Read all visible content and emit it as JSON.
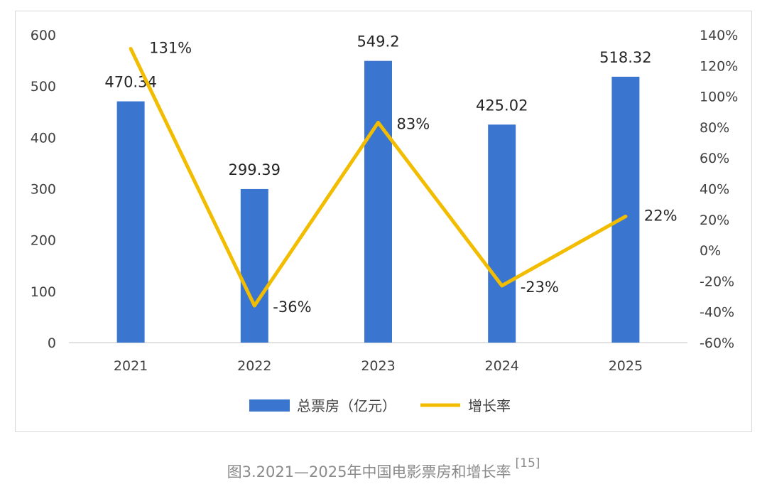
{
  "chart_data": {
    "type": "bar",
    "categories": [
      "2021",
      "2022",
      "2023",
      "2024",
      "2025"
    ],
    "series": [
      {
        "name": "总票房（亿元）",
        "type": "bar",
        "axis": "left",
        "color": "#3a75cf",
        "values": [
          470.34,
          299.39,
          549.2,
          425.02,
          518.32
        ],
        "labels": [
          "470.34",
          "299.39",
          "549.2",
          "425.02",
          "518.32"
        ]
      },
      {
        "name": "增长率",
        "type": "line",
        "axis": "right",
        "color": "#f2bd00",
        "values": [
          131,
          -36,
          83,
          -23,
          22
        ],
        "labels": [
          "131%",
          "-36%",
          "83%",
          "-23%",
          "22%"
        ]
      }
    ],
    "y_left": {
      "min": 0,
      "max": 600,
      "ticks": [
        "0",
        "100",
        "200",
        "300",
        "400",
        "500",
        "600"
      ]
    },
    "y_right": {
      "min": -60,
      "max": 140,
      "ticks": [
        "-60%",
        "-40%",
        "-20%",
        "0%",
        "20%",
        "40%",
        "60%",
        "80%",
        "100%",
        "120%",
        "140%"
      ]
    },
    "grid": false,
    "legend_position": "bottom"
  },
  "caption": {
    "text": "图3.2021—2025年中国电影票房和增长率",
    "ref": "[15]"
  }
}
